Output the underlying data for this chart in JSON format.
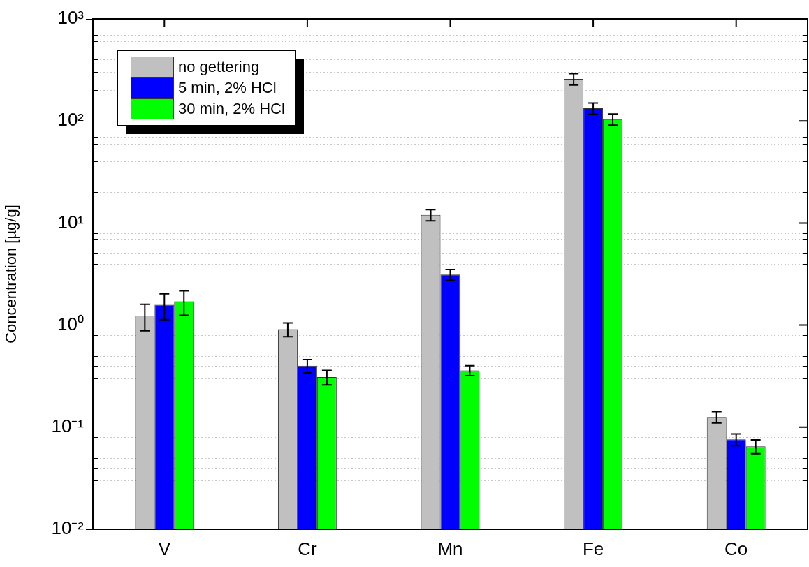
{
  "chart_data": {
    "type": "bar",
    "ylabel": "Concentration [µg/g]",
    "categories": [
      "V",
      "Cr",
      "Mn",
      "Fe",
      "Co"
    ],
    "series": [
      {
        "name": "no gettering",
        "color": "#c0c0c0",
        "values": [
          1.24,
          0.91,
          12.0,
          258,
          0.126
        ],
        "errors": [
          0.36,
          0.14,
          1.5,
          33,
          0.016
        ]
      },
      {
        "name": "5 min, 2% HCl",
        "color": "#0000ff",
        "values": [
          1.58,
          0.4,
          3.13,
          133,
          0.076
        ],
        "errors": [
          0.45,
          0.06,
          0.38,
          17,
          0.01
        ]
      },
      {
        "name": "30 min, 2% HCl",
        "color": "#00ff00",
        "values": [
          1.71,
          0.31,
          0.36,
          104,
          0.065
        ],
        "errors": [
          0.46,
          0.05,
          0.04,
          13,
          0.01
        ]
      }
    ],
    "log": "y",
    "ylim": [
      0.01,
      1000
    ],
    "yticks": [
      {
        "value": 0.01,
        "label": "10⁻²"
      },
      {
        "value": 0.1,
        "label": "10⁻¹"
      },
      {
        "value": 1,
        "label": "10⁰"
      },
      {
        "value": 10,
        "label": "10¹"
      },
      {
        "value": 100,
        "label": "10²"
      },
      {
        "value": 1000,
        "label": "10³"
      }
    ],
    "grid": "y",
    "legend": "top left"
  }
}
